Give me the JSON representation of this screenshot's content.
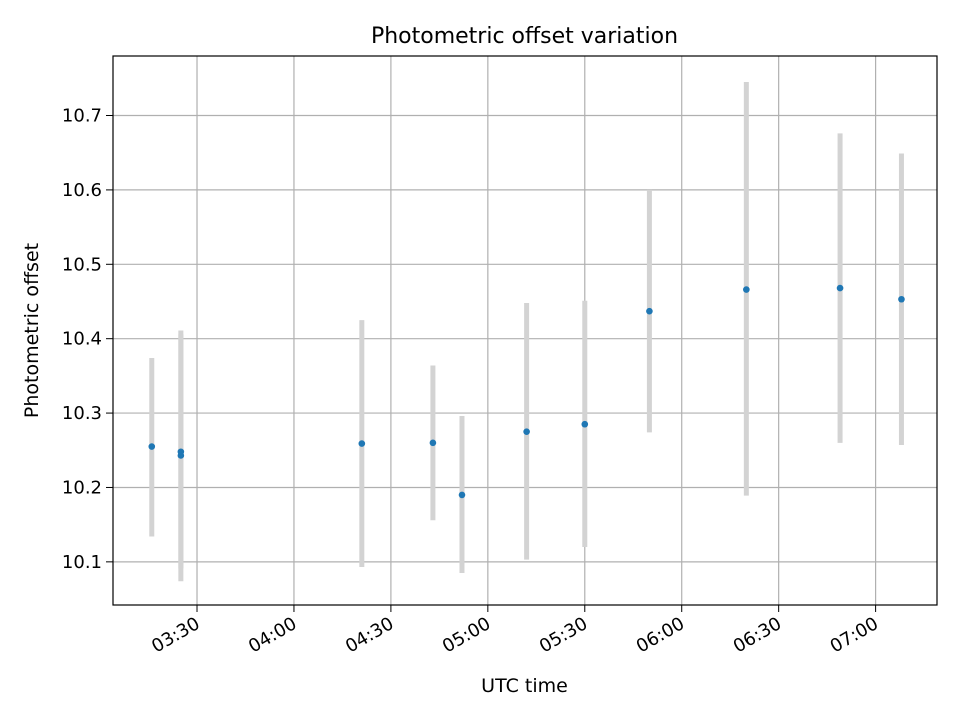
{
  "chart_data": {
    "type": "scatter",
    "title": "Photometric offset variation",
    "xlabel": "UTC time",
    "ylabel": "Photometric offset",
    "x_ticks": [
      "03:30",
      "04:00",
      "04:30",
      "05:00",
      "05:30",
      "06:00",
      "06:30",
      "07:00"
    ],
    "y_ticks": [
      "10.1",
      "10.2",
      "10.3",
      "10.4",
      "10.5",
      "10.6",
      "10.7"
    ],
    "xlim": [
      "03:04",
      "07:19"
    ],
    "ylim": [
      10.042,
      10.78
    ],
    "grid": true,
    "point_color": "#1f77b4",
    "errorbar_color": "#d3d3d3",
    "points": [
      {
        "x": "03:16",
        "y": 10.255,
        "ylow": 10.134,
        "yhigh": 10.374
      },
      {
        "x": "03:25",
        "y": 10.243,
        "ylow": 10.074,
        "yhigh": 10.411
      },
      {
        "x": "03:25",
        "y": 10.248,
        "ylow": 10.091,
        "yhigh": 10.406
      },
      {
        "x": "04:21",
        "y": 10.259,
        "ylow": 10.093,
        "yhigh": 10.425
      },
      {
        "x": "04:43",
        "y": 10.26,
        "ylow": 10.156,
        "yhigh": 10.364
      },
      {
        "x": "04:52",
        "y": 10.19,
        "ylow": 10.085,
        "yhigh": 10.296
      },
      {
        "x": "05:12",
        "y": 10.275,
        "ylow": 10.103,
        "yhigh": 10.448
      },
      {
        "x": "05:30",
        "y": 10.285,
        "ylow": 10.12,
        "yhigh": 10.451
      },
      {
        "x": "05:50",
        "y": 10.437,
        "ylow": 10.274,
        "yhigh": 10.6
      },
      {
        "x": "06:20",
        "y": 10.466,
        "ylow": 10.189,
        "yhigh": 10.745
      },
      {
        "x": "06:49",
        "y": 10.468,
        "ylow": 10.26,
        "yhigh": 10.676
      },
      {
        "x": "07:08",
        "y": 10.453,
        "ylow": 10.257,
        "yhigh": 10.649
      }
    ]
  }
}
